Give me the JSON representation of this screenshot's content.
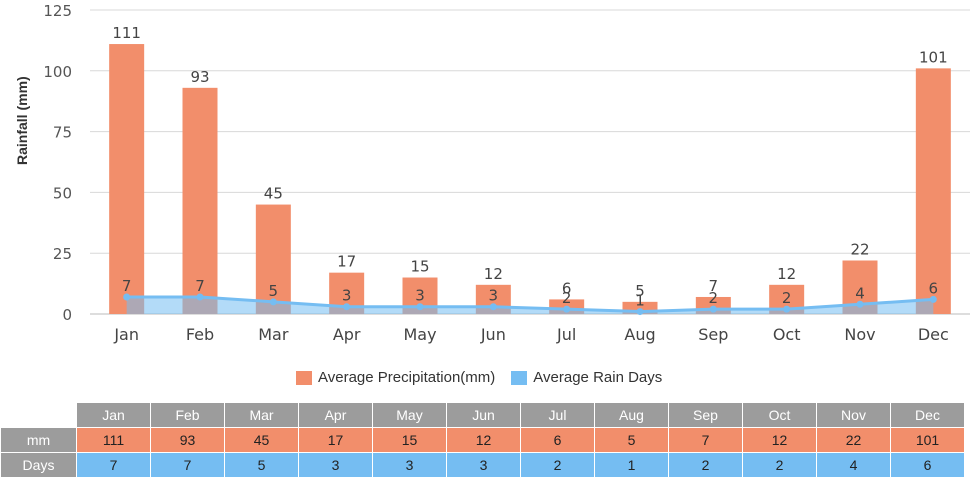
{
  "chart_data": {
    "type": "bar",
    "categories": [
      "Jan",
      "Feb",
      "Mar",
      "Apr",
      "May",
      "Jun",
      "Jul",
      "Aug",
      "Sep",
      "Oct",
      "Nov",
      "Dec"
    ],
    "series": [
      {
        "name": "Average Precipitation(mm)",
        "type": "bar",
        "color": "#f28e6b",
        "values": [
          111,
          93,
          45,
          17,
          15,
          12,
          6,
          5,
          7,
          12,
          22,
          101
        ]
      },
      {
        "name": "Average Rain Days",
        "type": "area",
        "color": "#75bdf2",
        "values": [
          7,
          7,
          5,
          3,
          3,
          3,
          2,
          1,
          2,
          2,
          4,
          6
        ]
      }
    ],
    "ylabel": "Rainfall (mm)",
    "ylim": [
      0,
      125
    ],
    "yticks": [
      0,
      25,
      50,
      75,
      100,
      125
    ],
    "grid": true,
    "legend": "bottom-center"
  },
  "table": {
    "row_labels": [
      "mm",
      "Days"
    ]
  }
}
